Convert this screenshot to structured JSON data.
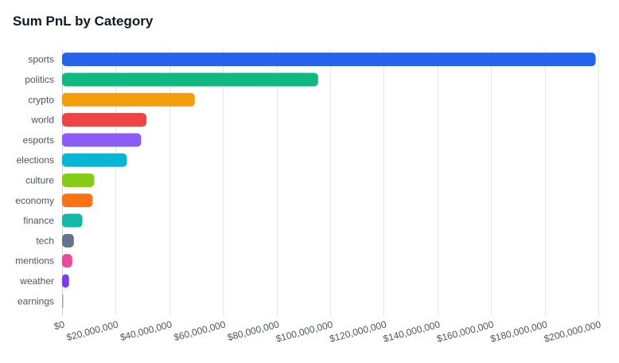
{
  "chart_data": {
    "type": "bar",
    "orientation": "horizontal",
    "title": "Sum PnL by Category",
    "xlabel": "",
    "ylabel": "",
    "xlim": [
      0,
      200000000
    ],
    "grid": true,
    "legend": "none",
    "x_ticks": [
      "$0",
      "$20,000,000",
      "$40,000,000",
      "$60,000,000",
      "$80,000,000",
      "$100,000,000",
      "$120,000,000",
      "$140,000,000",
      "$160,000,000",
      "$180,000,000",
      "$200,000,000"
    ],
    "x_tick_values": [
      0,
      20000000,
      40000000,
      60000000,
      80000000,
      100000000,
      120000000,
      140000000,
      160000000,
      180000000,
      200000000
    ],
    "categories": [
      "sports",
      "politics",
      "crypto",
      "world",
      "esports",
      "elections",
      "culture",
      "economy",
      "finance",
      "tech",
      "mentions",
      "weather",
      "earnings"
    ],
    "values": [
      199000000,
      95500000,
      49500000,
      31500000,
      29500000,
      24200000,
      12000000,
      11400000,
      7600000,
      4400000,
      3800000,
      2600000,
      300000
    ],
    "colors": [
      "#2563eb",
      "#10b981",
      "#f59e0b",
      "#ef4444",
      "#8b5cf6",
      "#06b6d4",
      "#84cc16",
      "#f97316",
      "#14b8a6",
      "#64748b",
      "#ec4899",
      "#7c3aed",
      "#9ca3af"
    ]
  }
}
